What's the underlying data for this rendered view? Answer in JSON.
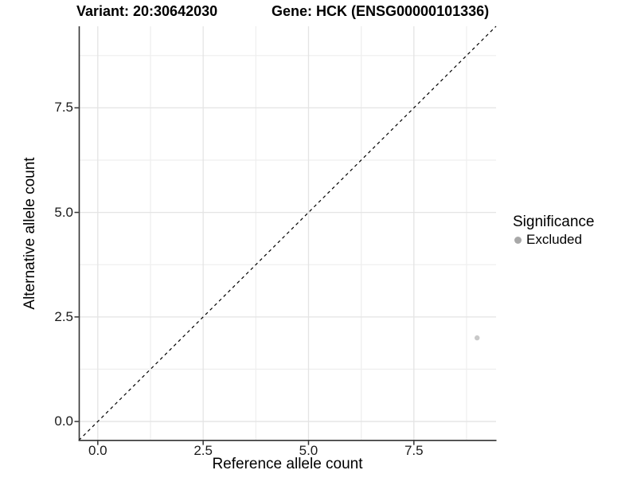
{
  "chart_data": {
    "type": "scatter",
    "titles": [
      "Variant: 20:30642030",
      "Gene: HCK (ENSG00000101336)"
    ],
    "xlabel": "Reference allele count",
    "ylabel": "Alternative allele count",
    "xlim": [
      -0.45,
      9.45
    ],
    "ylim": [
      -0.45,
      9.45
    ],
    "x_ticks": [
      0,
      2.5,
      5,
      7.5
    ],
    "x_tick_labels": [
      "0.0",
      "2.5",
      "5.0",
      "7.5"
    ],
    "y_ticks": [
      0,
      2.5,
      5,
      7.5
    ],
    "y_tick_labels": [
      "0.0",
      "2.5",
      "5.0",
      "7.5"
    ],
    "x_minor_ticks": [
      1.25,
      3.75,
      6.25,
      8.75
    ],
    "y_minor_ticks": [
      1.25,
      3.75,
      6.25,
      8.75
    ],
    "grid": "major+minor on white",
    "points": [
      {
        "x": 9,
        "y": 2,
        "series": "Excluded",
        "color": "#c9c9c9",
        "radius": 3.2
      }
    ],
    "reference_line": {
      "type": "identity y=x",
      "style": "dashed",
      "color": "#000000",
      "from": [
        -0.45,
        -0.45
      ],
      "to": [
        9.45,
        9.45
      ]
    },
    "legend": {
      "title": "Significance",
      "position": "right",
      "entries": [
        {
          "label": "Excluded",
          "color": "#a8a8a8"
        }
      ]
    },
    "colors": {
      "background": "#ffffff",
      "grid_major": "#e4e4e4",
      "grid_minor": "#efefef",
      "axis_line": "#333333",
      "tick_mark": "#333333",
      "tick_label": "#1a1a1a",
      "point": "#c9c9c9",
      "legend_key": "#a8a8a8"
    }
  }
}
